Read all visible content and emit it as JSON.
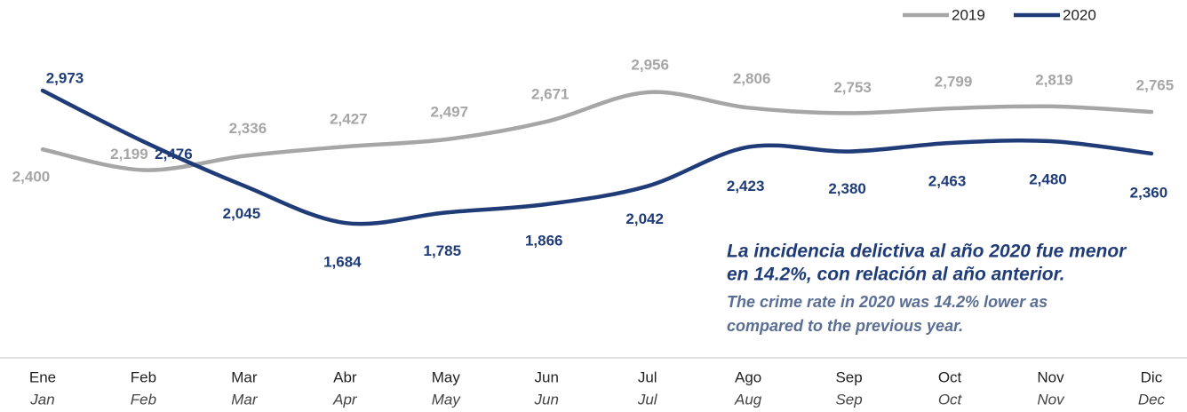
{
  "chart_data": {
    "type": "line",
    "categories": [
      "Ene",
      "Feb",
      "Mar",
      "Abr",
      "May",
      "Jun",
      "Jul",
      "Ago",
      "Sep",
      "Oct",
      "Nov",
      "Dic"
    ],
    "categories_en": [
      "Jan",
      "Feb",
      "Mar",
      "Apr",
      "May",
      "Jun",
      "Jul",
      "Aug",
      "Sep",
      "Oct",
      "Nov",
      "Dec"
    ],
    "series": [
      {
        "name": "2019",
        "color": "#a6a6a6",
        "values": [
          2400,
          2199,
          2336,
          2427,
          2497,
          2671,
          2956,
          2806,
          2753,
          2799,
          2819,
          2765
        ],
        "value_labels": [
          "2,400",
          "2,199",
          "2,336",
          "2,427",
          "2,497",
          "2,671",
          "2,956",
          "2,806",
          "2,753",
          "2,799",
          "2,819",
          "2,765"
        ]
      },
      {
        "name": "2020",
        "color": "#1f3c78",
        "values": [
          2973,
          2476,
          2045,
          1684,
          1785,
          1866,
          2042,
          2423,
          2380,
          2463,
          2480,
          2360
        ],
        "value_labels": [
          "2,973",
          "2,476",
          "2,045",
          "1,684",
          "1,785",
          "1,866",
          "2,042",
          "2,423",
          "2,380",
          "2,463",
          "2,480",
          "2,360"
        ]
      }
    ],
    "ylim": [
      370,
      3855
    ],
    "annotation": {
      "es": [
        "La incidencia delictiva al año 2020 fue menor",
        "en 14.2%, con relación al año anterior."
      ],
      "en": [
        "The crime rate in 2020 was 14.2% lower as",
        "compared to the previous year."
      ]
    }
  }
}
